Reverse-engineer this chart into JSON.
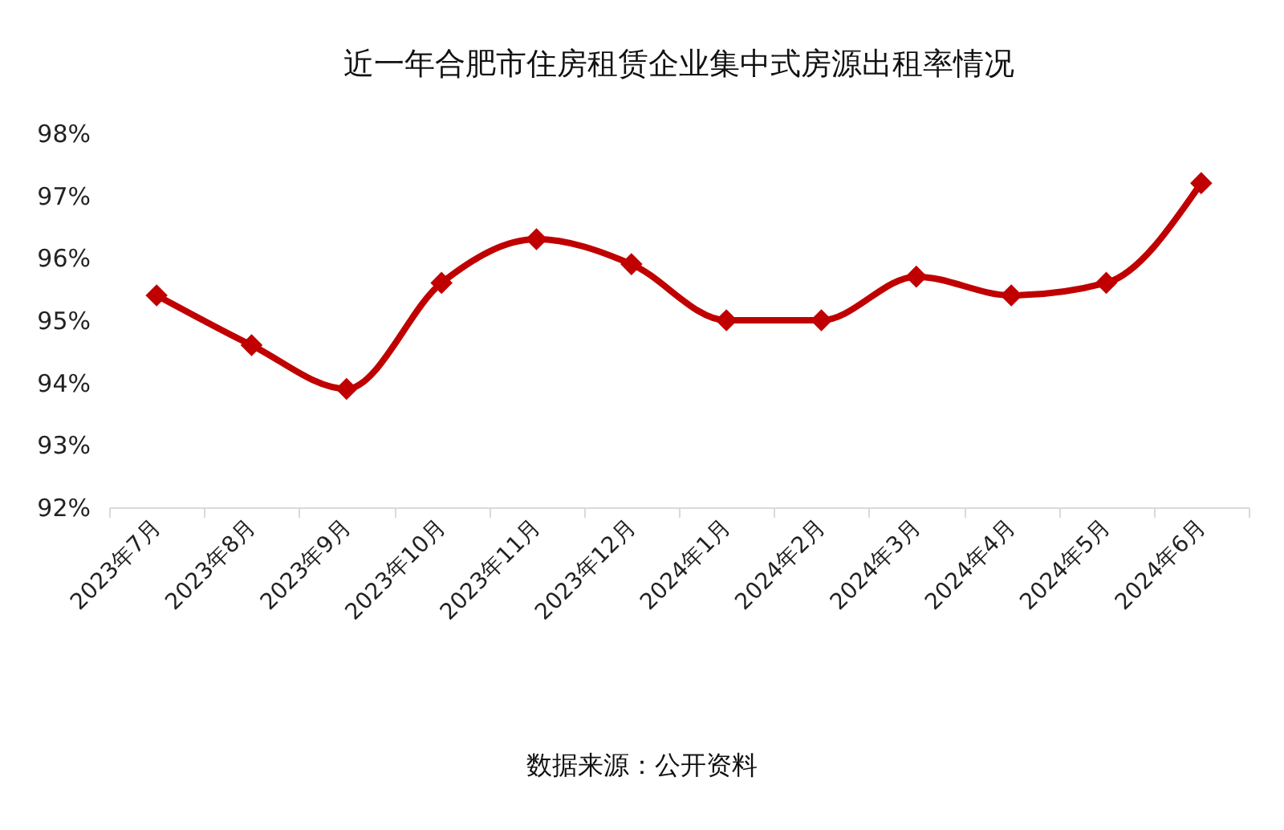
{
  "chart_data": {
    "type": "line",
    "title": "近一年合肥市住房租赁企业集中式房源出租率情况",
    "categories": [
      "2023年7月",
      "2023年8月",
      "2023年9月",
      "2023年10月",
      "2023年11月",
      "2023年12月",
      "2024年1月",
      "2024年2月",
      "2024年3月",
      "2024年4月",
      "2024年5月",
      "2024年6月"
    ],
    "series": [
      {
        "color": "#c00000",
        "values": [
          95.4,
          94.6,
          93.9,
          95.6,
          96.3,
          95.9,
          95.0,
          95.0,
          95.7,
          95.4,
          95.6,
          97.2
        ]
      }
    ],
    "ylim": [
      92,
      98
    ],
    "yticks": [
      {
        "value": 92,
        "label": "92%"
      },
      {
        "value": 93,
        "label": "93%"
      },
      {
        "value": 94,
        "label": "94%"
      },
      {
        "value": 95,
        "label": "95%"
      },
      {
        "value": 96,
        "label": "96%"
      },
      {
        "value": 97,
        "label": "97%"
      },
      {
        "value": 98,
        "label": "98%"
      }
    ],
    "marker": "diamond",
    "grid": false,
    "annotations": [
      "数据来源：公开资料"
    ]
  }
}
